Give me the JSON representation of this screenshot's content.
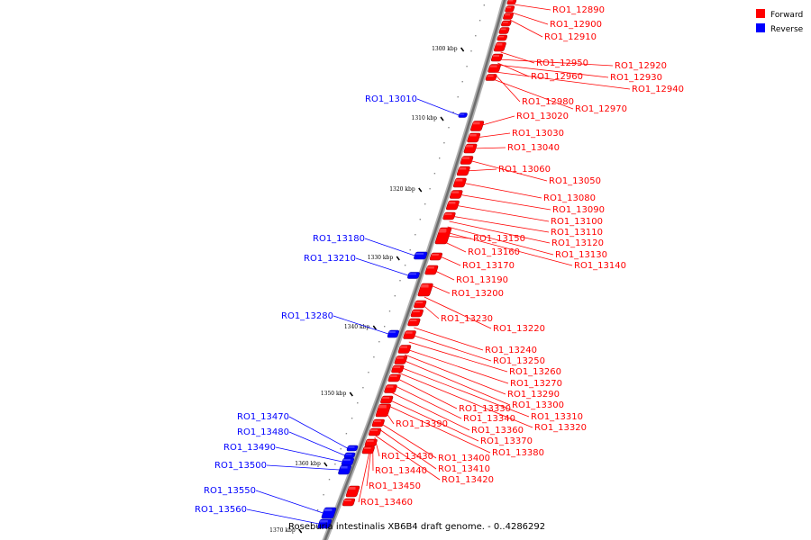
{
  "legend": {
    "forward_label": "Forward",
    "reverse_label": "Reverse",
    "forward_color": "#ff0000",
    "reverse_color": "#0000ff"
  },
  "caption": "Roseburia intestinalis XB6B4 draft genome. - 0..4286292",
  "scale_ticks": [
    "1300 kbp",
    "1310 kbp",
    "1320 kbp",
    "1330 kbp",
    "1340 kbp",
    "1350 kbp",
    "1360 kbp",
    "1370 kbp"
  ],
  "forward_genes": [
    "RO1_12890",
    "RO1_12900",
    "RO1_12910",
    "RO1_12920",
    "RO1_12930",
    "RO1_12940",
    "RO1_12950",
    "RO1_12960",
    "RO1_12970",
    "RO1_12980",
    "RO1_13020",
    "RO1_13030",
    "RO1_13040",
    "RO1_13050",
    "RO1_13060",
    "RO1_13080",
    "RO1_13090",
    "RO1_13100",
    "RO1_13110",
    "RO1_13120",
    "RO1_13130",
    "RO1_13140",
    "RO1_13150",
    "RO1_13160",
    "RO1_13170",
    "RO1_13190",
    "RO1_13200",
    "RO1_13220",
    "RO1_13230",
    "RO1_13240",
    "RO1_13250",
    "RO1_13260",
    "RO1_13270",
    "RO1_13290",
    "RO1_13300",
    "RO1_13310",
    "RO1_13320",
    "RO1_13330",
    "RO1_13340",
    "RO1_13360",
    "RO1_13370",
    "RO1_13380",
    "RO1_13390",
    "RO1_13400",
    "RO1_13410",
    "RO1_13420",
    "RO1_13430",
    "RO1_13440",
    "RO1_13450",
    "RO1_13460"
  ],
  "reverse_genes": [
    "RO1_13010",
    "RO1_13180",
    "RO1_13210",
    "RO1_13280",
    "RO1_13470",
    "RO1_13480",
    "RO1_13490",
    "RO1_13500",
    "RO1_13550",
    "RO1_13560"
  ]
}
